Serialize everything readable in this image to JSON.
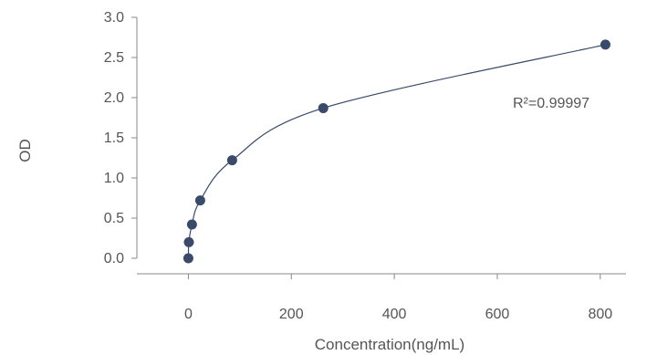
{
  "chart_data": {
    "type": "scatter",
    "xlabel": "Concentration(ng/mL)",
    "ylabel": "OD",
    "xlim": [
      -100,
      850
    ],
    "ylim": [
      0,
      3.0
    ],
    "xticks": [
      0,
      200,
      400,
      600,
      800
    ],
    "yticks": [
      0.0,
      0.5,
      1.0,
      1.5,
      2.0,
      2.5,
      3.0
    ],
    "xtick_labels": [
      "0",
      "200",
      "400",
      "600",
      "800"
    ],
    "ytick_labels": [
      "0.0",
      "0.5",
      "1.0",
      "1.5",
      "2.0",
      "2.5",
      "3.0"
    ],
    "points": [
      {
        "x": 0,
        "y": 0.0
      },
      {
        "x": 1,
        "y": 0.2
      },
      {
        "x": 7,
        "y": 0.42
      },
      {
        "x": 23,
        "y": 0.72
      },
      {
        "x": 85,
        "y": 1.22
      },
      {
        "x": 262,
        "y": 1.87
      },
      {
        "x": 810,
        "y": 2.66
      }
    ],
    "fit_curve": true,
    "grid": false,
    "annotation": "R²=0.99997",
    "colors": {
      "marker": "#3a4a6b",
      "curve": "#3a4a6b",
      "axis": "#888888",
      "text": "#555555"
    }
  }
}
